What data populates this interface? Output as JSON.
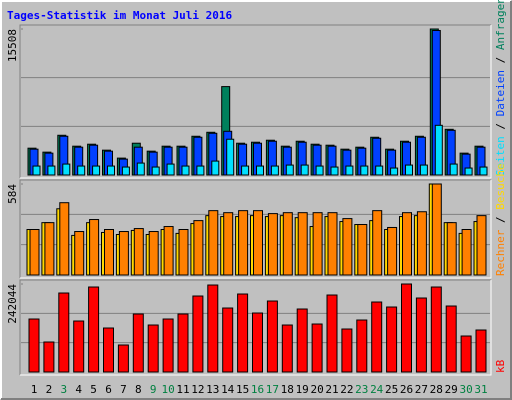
{
  "title": "Tages-Statistik im Monat Juli 2016",
  "chart_data": [
    {
      "type": "bar",
      "legend_separator": " / ",
      "series": [
        {
          "name": "Anfragen",
          "color": "#00805c",
          "values": [
            2849,
            2427,
            4220,
            3060,
            3271,
            2638,
            1794,
            3376,
            2532,
            3060,
            3060,
            4115,
            4537,
            9390,
            3376,
            3482,
            3693,
            3060,
            3587,
            3271,
            3165,
            2743,
            2954,
            4009,
            2743,
            3587,
            4115,
            15508,
            4853,
            2321,
            3060
          ]
        },
        {
          "name": "Dateien",
          "color": "#0040ff",
          "values": [
            2743,
            2321,
            4115,
            2954,
            3165,
            2532,
            1688,
            2954,
            2427,
            2954,
            2954,
            4009,
            4431,
            4642,
            3271,
            3376,
            3587,
            2954,
            3482,
            3165,
            3060,
            2638,
            2849,
            3904,
            2638,
            3482,
            4009,
            15350,
            4748,
            2216,
            2954
          ]
        },
        {
          "name": "Seiten",
          "color": "#00e0ff",
          "values": [
            950,
            950,
            1161,
            950,
            950,
            950,
            844,
            1266,
            844,
            1161,
            950,
            950,
            1477,
            3798,
            950,
            950,
            950,
            1055,
            1055,
            950,
            844,
            950,
            950,
            950,
            739,
            1055,
            1055,
            5277,
            1161,
            739,
            844
          ]
        }
      ],
      "ylim": [
        0,
        15508
      ],
      "yticks": [
        15508
      ],
      "grid_divisions": 3
    },
    {
      "type": "bar",
      "legend_separator": " / ",
      "series": [
        {
          "name": "Besuche",
          "color": "#ffd800",
          "values": [
            292,
            336,
            425,
            254,
            336,
            273,
            260,
            286,
            260,
            292,
            267,
            330,
            381,
            375,
            375,
            381,
            375,
            381,
            368,
            311,
            375,
            343,
            324,
            349,
            292,
            375,
            381,
            584,
            336,
            267,
            343
          ]
        },
        {
          "name": "Rechner",
          "color": "#ff8000",
          "values": [
            292,
            336,
            464,
            279,
            356,
            292,
            279,
            298,
            279,
            311,
            292,
            349,
            413,
            400,
            413,
            413,
            394,
            400,
            400,
            400,
            400,
            362,
            324,
            413,
            305,
            400,
            406,
            584,
            336,
            292,
            381
          ]
        }
      ],
      "ylim": [
        0,
        584
      ],
      "yticks": [
        584
      ],
      "grid_divisions": 3
    },
    {
      "type": "bar",
      "categories": [
        "1",
        "2",
        "3",
        "4",
        "5",
        "6",
        "7",
        "8",
        "9",
        "10",
        "11",
        "12",
        "13",
        "14",
        "15",
        "16",
        "17",
        "18",
        "19",
        "20",
        "21",
        "22",
        "23",
        "24",
        "25",
        "26",
        "27",
        "28",
        "29",
        "30",
        "31"
      ],
      "category_colors": [
        "#000000",
        "#000000",
        "#008040",
        "#000000",
        "#000000",
        "#000000",
        "#000000",
        "#000000",
        "#008040",
        "#008040",
        "#000000",
        "#000000",
        "#000000",
        "#000000",
        "#000000",
        "#008040",
        "#008040",
        "#000000",
        "#000000",
        "#000000",
        "#000000",
        "#000000",
        "#008040",
        "#008040",
        "#000000",
        "#000000",
        "#000000",
        "#000000",
        "#000000",
        "#008040",
        "#008040"
      ],
      "series": [
        {
          "name": "kB",
          "color": "#ff0000",
          "values": [
            145750,
            82500,
            217250,
            140250,
            233750,
            121000,
            74250,
            159500,
            129250,
            145750,
            159500,
            209000,
            239250,
            176000,
            214500,
            162250,
            195250,
            129250,
            173250,
            132000,
            211750,
            118250,
            143000,
            192500,
            178750,
            242044,
            203500,
            233750,
            181500,
            99000,
            115500
          ]
        }
      ],
      "ylim": [
        0,
        242044
      ],
      "yticks": [
        242044
      ],
      "grid_divisions": 3
    }
  ]
}
